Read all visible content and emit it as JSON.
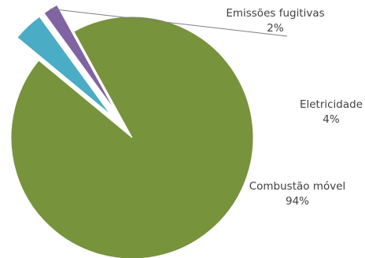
{
  "chart_data": {
    "type": "pie",
    "title": "",
    "slices": [
      {
        "label": "Combustão móvel",
        "value": 94,
        "value_label": "94%",
        "color": "#77933c",
        "exploded": false
      },
      {
        "label": "Eletricidade",
        "value": 4,
        "value_label": "4%",
        "color": "#4bacc6",
        "exploded": true
      },
      {
        "label": "Emissões fugitivas",
        "value": 2,
        "value_label": "2%",
        "color": "#8064a2",
        "exploded": true
      }
    ],
    "legend": "none",
    "data_labels": "outside"
  }
}
